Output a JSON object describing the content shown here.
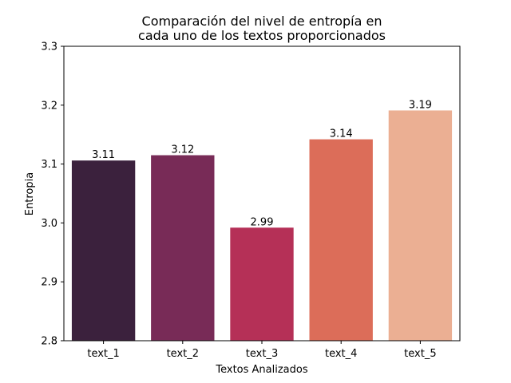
{
  "chart_data": {
    "type": "bar",
    "title_lines": [
      "Comparación del nivel de entropía en",
      "cada uno de los textos proporcionados"
    ],
    "xlabel": "Textos Analizados",
    "ylabel": "Entropia",
    "ylim": [
      2.8,
      3.3
    ],
    "yticks": [
      "2.8",
      "2.9",
      "3.0",
      "3.1",
      "3.2",
      "3.3"
    ],
    "categories": [
      "text_1",
      "text_2",
      "text_3",
      "text_4",
      "text_5"
    ],
    "values": [
      3.106,
      3.115,
      2.992,
      3.142,
      3.191
    ],
    "value_labels": [
      "3.11",
      "3.12",
      "2.99",
      "3.14",
      "3.19"
    ],
    "colors": [
      "#3b213d",
      "#782b57",
      "#b53057",
      "#dc6d59",
      "#ebaf93"
    ],
    "grid": false,
    "legend": "none"
  }
}
